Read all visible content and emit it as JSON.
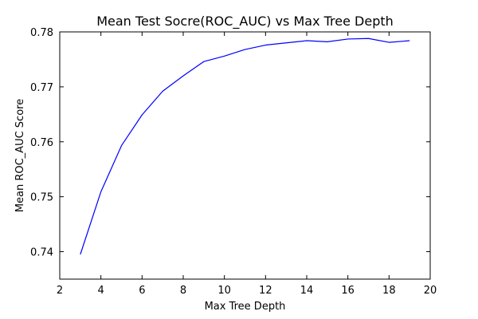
{
  "chart_data": {
    "type": "line",
    "title": "Mean Test Socre(ROC_AUC) vs Max Tree Depth",
    "xlabel": "Max Tree Depth",
    "ylabel": "Mean ROC_AUC Score",
    "xlim": [
      2,
      20
    ],
    "ylim": [
      0.735,
      0.78
    ],
    "xticks": [
      2,
      4,
      6,
      8,
      10,
      12,
      14,
      16,
      18,
      20
    ],
    "yticks": [
      0.74,
      0.75,
      0.76,
      0.77,
      0.78
    ],
    "yticklabels": [
      "0.74",
      "0.75",
      "0.76",
      "0.77",
      "0.78"
    ],
    "grid": false,
    "series": [
      {
        "color": "#0000ff",
        "x": [
          3,
          4,
          5,
          6,
          7,
          8,
          9,
          10,
          11,
          12,
          13,
          14,
          15,
          16,
          17,
          18,
          19
        ],
        "y": [
          0.7395,
          0.7509,
          0.7593,
          0.7649,
          0.7692,
          0.772,
          0.7746,
          0.7756,
          0.7768,
          0.7776,
          0.778,
          0.7784,
          0.7782,
          0.7787,
          0.7788,
          0.7781,
          0.7784
        ]
      }
    ]
  }
}
